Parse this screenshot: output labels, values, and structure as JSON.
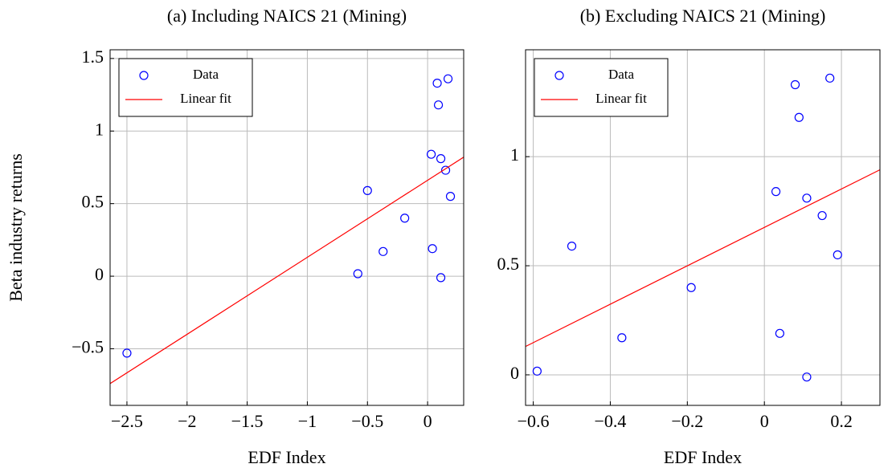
{
  "chart_data": [
    {
      "type": "scatter",
      "title": "(a) Including NAICS 21 (Mining)",
      "xlabel": "EDF Index",
      "ylabel": "Beta industry returns",
      "xlim": [
        -2.64,
        0.3
      ],
      "ylim": [
        -0.89,
        1.56
      ],
      "xticks": [
        {
          "value": -2.5,
          "label": "−2.5"
        },
        {
          "value": -2,
          "label": "−2"
        },
        {
          "value": -1.5,
          "label": "−1.5"
        },
        {
          "value": -1,
          "label": "−1"
        },
        {
          "value": -0.5,
          "label": "−0.5"
        },
        0
      ],
      "yticks": [
        {
          "value": -0.5,
          "label": "−0.5"
        },
        0,
        0.5,
        1,
        1.5
      ],
      "grid": true,
      "legend": "upper left",
      "series": [
        {
          "name": "Data",
          "type": "scatter",
          "color": "#0000ff",
          "x": [
            -2.5,
            -0.58,
            -0.5,
            -0.37,
            -0.19,
            0.03,
            0.04,
            0.08,
            0.09,
            0.11,
            0.11,
            0.15,
            0.17,
            0.19
          ],
          "values": [
            -0.53,
            0.017,
            0.59,
            0.17,
            0.4,
            0.84,
            0.19,
            1.33,
            1.18,
            0.81,
            -0.01,
            0.73,
            1.36,
            0.55
          ]
        },
        {
          "name": "Linear fit",
          "type": "line",
          "color": "#ff0000",
          "x": [
            -2.64,
            0.3
          ],
          "values": [
            -0.74,
            0.82
          ]
        }
      ]
    },
    {
      "type": "scatter",
      "title": "(b) Excluding NAICS 21 (Mining)",
      "xlabel": "EDF Index",
      "xlim": [
        -0.62,
        0.3
      ],
      "ylim": [
        -0.14,
        1.49
      ],
      "xticks": [
        {
          "value": -0.6,
          "label": "−0.6"
        },
        {
          "value": -0.4,
          "label": "−0.4"
        },
        {
          "value": -0.2,
          "label": "−0.2"
        },
        0,
        0.2
      ],
      "yticks": [
        0,
        0.5,
        1
      ],
      "grid": true,
      "legend": "upper left",
      "series": [
        {
          "name": "Data",
          "type": "scatter",
          "color": "#0000ff",
          "x": [
            -0.59,
            -0.5,
            -0.37,
            -0.19,
            0.03,
            0.04,
            0.08,
            0.09,
            0.11,
            0.11,
            0.15,
            0.17,
            0.19
          ],
          "values": [
            0.017,
            0.59,
            0.17,
            0.4,
            0.84,
            0.19,
            1.33,
            1.18,
            0.81,
            -0.01,
            0.73,
            1.36,
            0.55
          ]
        },
        {
          "name": "Linear fit",
          "type": "line",
          "color": "#ff0000",
          "x": [
            -0.62,
            0.3
          ],
          "values": [
            0.13,
            0.94
          ]
        }
      ]
    }
  ]
}
